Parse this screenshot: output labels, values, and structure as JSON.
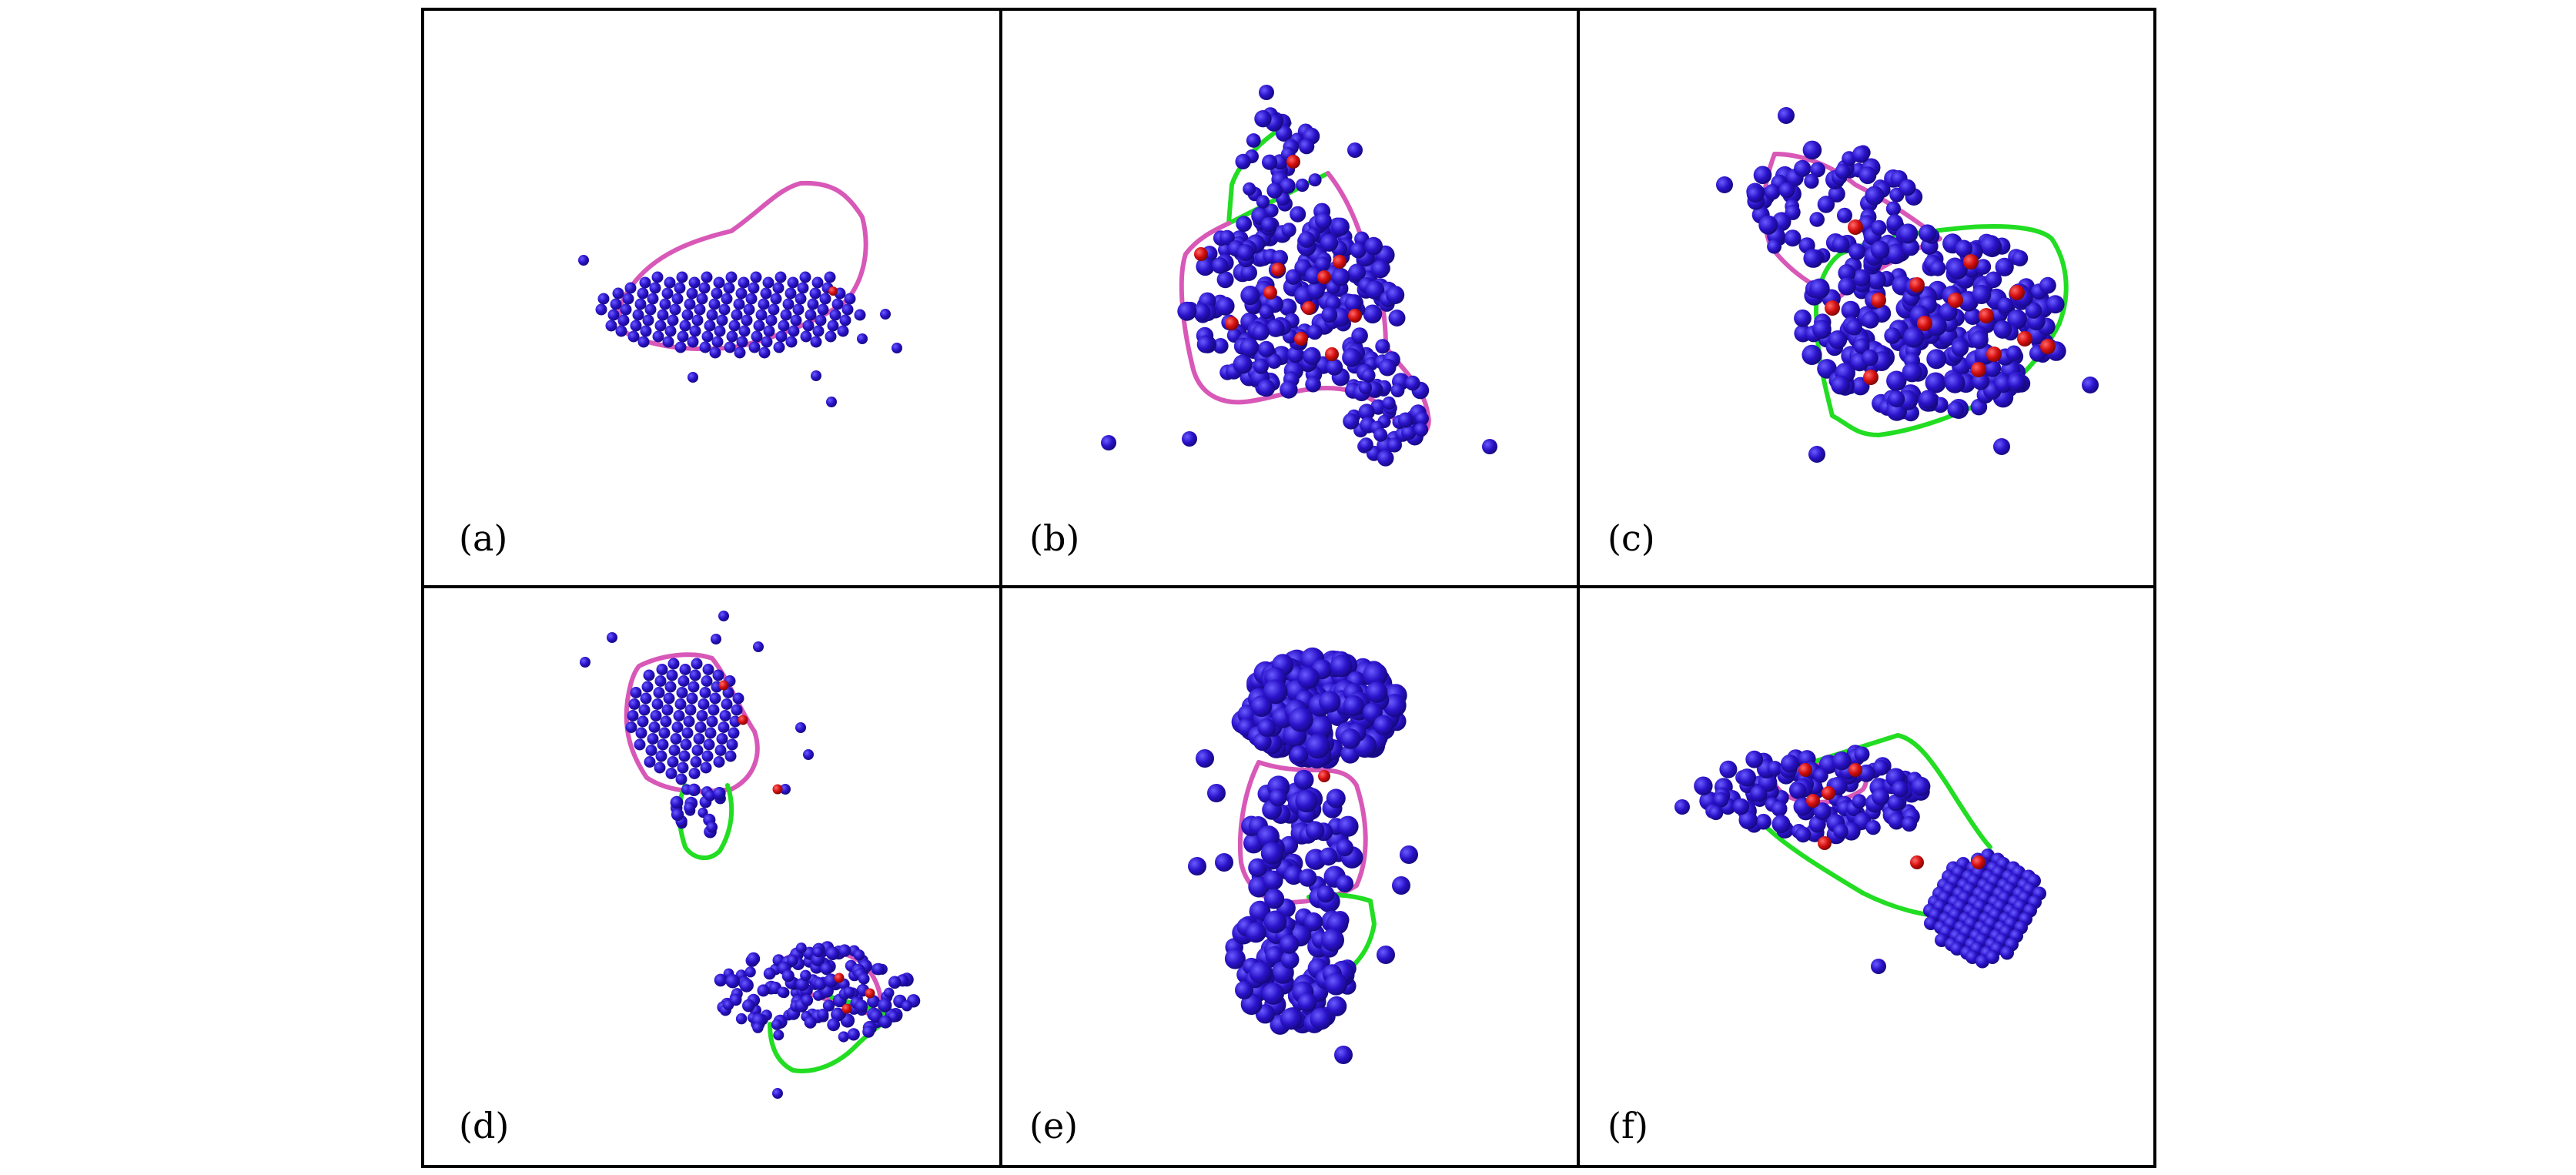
{
  "panels": [
    {
      "label": "(a)"
    },
    {
      "label": "(b)"
    },
    {
      "label": "(c)"
    },
    {
      "label": "(d)"
    },
    {
      "label": "(e)"
    },
    {
      "label": "(f)"
    }
  ],
  "colors": {
    "atom": "#2a12c9",
    "atom_shade": "#14087a",
    "highlight_atom": "#d40e0e",
    "outline_magenta": "#d858b8",
    "outline_green": "#22dd22",
    "frame": "#000000"
  }
}
